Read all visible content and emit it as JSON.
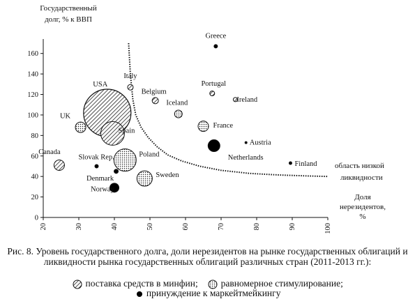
{
  "chart_data": {
    "type": "scatter",
    "ylabel_lines": [
      "Государственный",
      "долг,  %  к ВВП"
    ],
    "xlabel_lines": [
      "Доля",
      "нерезидентов,",
      "%"
    ],
    "xlim": [
      20,
      100
    ],
    "ylim": [
      0,
      170
    ],
    "xticks": [
      20,
      30,
      40,
      50,
      60,
      70,
      80,
      90,
      100
    ],
    "yticks": [
      0,
      20,
      40,
      60,
      80,
      100,
      120,
      140,
      160
    ],
    "points": [
      {
        "label": "Greece",
        "x": 68.5,
        "y": 167,
        "size": 2.5,
        "pattern": "solid"
      },
      {
        "label": "Italy",
        "x": 44.5,
        "y": 127,
        "size": 4,
        "pattern": "stripes"
      },
      {
        "label": "Portugal",
        "x": 67.5,
        "y": 121,
        "size": 3.5,
        "pattern": "stripes"
      },
      {
        "label": "Belgium",
        "x": 51.5,
        "y": 114,
        "size": 4.5,
        "pattern": "stripes"
      },
      {
        "label": "Ireland",
        "x": 74,
        "y": 115,
        "size": 3,
        "pattern": "stripes"
      },
      {
        "label": "Iceland",
        "x": 58,
        "y": 101,
        "size": 5.5,
        "pattern": "dots"
      },
      {
        "label": "USA",
        "x": 38,
        "y": 102,
        "size": 34,
        "pattern": "stripes"
      },
      {
        "label": "UK",
        "x": 30.5,
        "y": 88,
        "size": 7.5,
        "pattern": "dots"
      },
      {
        "label": "France",
        "x": 65,
        "y": 89,
        "size": 7.5,
        "pattern": "dots"
      },
      {
        "label": "Spain",
        "x": 39.5,
        "y": 82,
        "size": 17,
        "pattern": "stripes"
      },
      {
        "label": "Austria",
        "x": 77,
        "y": 73,
        "size": 1.5,
        "pattern": "solid"
      },
      {
        "label": "Netherlands",
        "x": 68,
        "y": 70,
        "size": 8.5,
        "pattern": "solid"
      },
      {
        "label": "Finland",
        "x": 89.5,
        "y": 53,
        "size": 2,
        "pattern": "solid"
      },
      {
        "label": "Canada",
        "x": 24.5,
        "y": 51,
        "size": 7.5,
        "pattern": "stripes"
      },
      {
        "label": "Slovak Rep.",
        "x": 35,
        "y": 50,
        "size": 2.5,
        "pattern": "solid"
      },
      {
        "label": "Poland",
        "x": 43,
        "y": 56,
        "size": 16,
        "pattern": "dots"
      },
      {
        "label": "Denmark",
        "x": 40.5,
        "y": 45,
        "size": 3,
        "pattern": "solid"
      },
      {
        "label": "Sweden",
        "x": 48.5,
        "y": 38,
        "size": 11,
        "pattern": "dots"
      },
      {
        "label": "Norway",
        "x": 40,
        "y": 29,
        "size": 6.5,
        "pattern": "solid"
      }
    ],
    "curve": {
      "label_lines": [
        "область низкой",
        "ликвидности"
      ],
      "points": [
        [
          44,
          170
        ],
        [
          44.5,
          140
        ],
        [
          45.2,
          115
        ],
        [
          46,
          100
        ],
        [
          47.5,
          88
        ],
        [
          49.5,
          78
        ],
        [
          52,
          69
        ],
        [
          55,
          61
        ],
        [
          59,
          55
        ],
        [
          64,
          50
        ],
        [
          70,
          46
        ],
        [
          78,
          43
        ],
        [
          86,
          41.5
        ],
        [
          94,
          40.5
        ],
        [
          100,
          40
        ]
      ]
    },
    "caption": "Рис. 8. Уровень государственного долга, доли нерезидентов на рынке государственных облигаций и ликвидности рынка государственных облигаций различных стран (2011-2013 гг.):",
    "legend": [
      {
        "pattern": "stripes",
        "label": "поставка средств в минфин;"
      },
      {
        "pattern": "dots",
        "label": "равномерное стимулирование;"
      },
      {
        "pattern": "solid",
        "label": "принуждение к маркейтмейкингу"
      }
    ]
  }
}
